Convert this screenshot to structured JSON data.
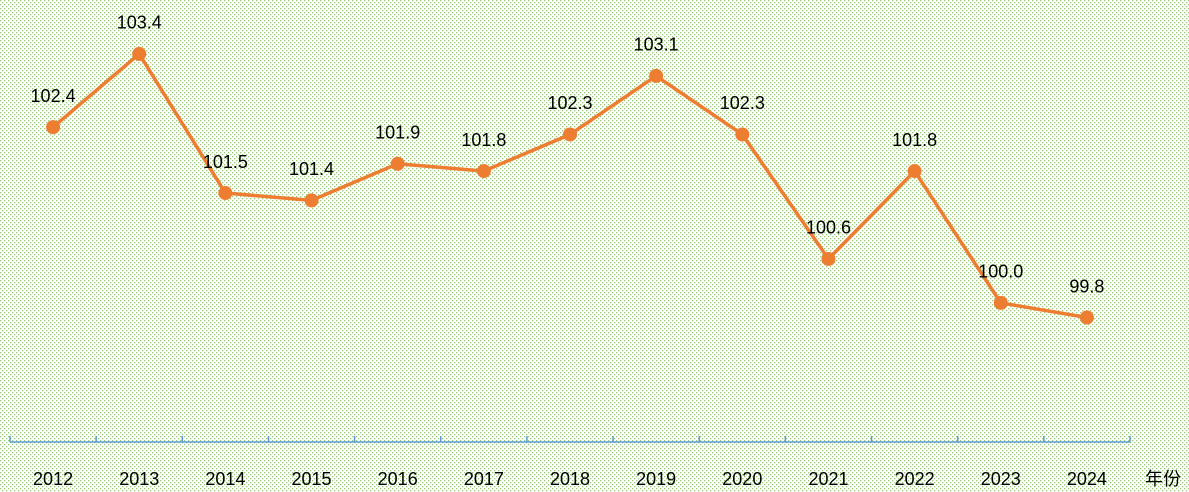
{
  "chart_data": {
    "type": "line",
    "x_label": "年份",
    "categories": [
      "2012",
      "2013",
      "2014",
      "2015",
      "2016",
      "2017",
      "2018",
      "2019",
      "2020",
      "2021",
      "2022",
      "2023",
      "2024"
    ],
    "series": [
      {
        "color": "#ed7d31",
        "values": [
          102.4,
          103.4,
          101.5,
          101.4,
          101.9,
          101.8,
          102.3,
          103.1,
          102.3,
          100.6,
          101.8,
          100.0,
          99.8
        ],
        "value_labels": [
          "102.4",
          "103.4",
          "101.5",
          "101.4",
          "101.9",
          "101.8",
          "102.3",
          "103.1",
          "102.3",
          "100.6",
          "101.8",
          "100.0",
          "99.8"
        ]
      }
    ],
    "ylim": [
      98.1,
      104.0
    ]
  }
}
